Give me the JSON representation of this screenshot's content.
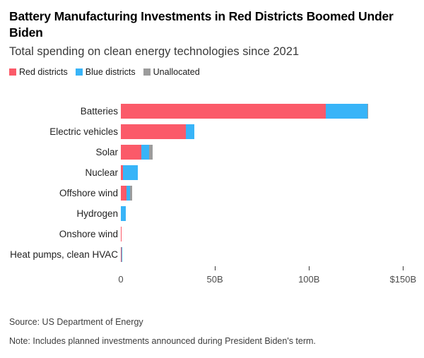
{
  "header": {
    "title": "Battery Manufacturing Investments in Red Districts Boomed Under Biden",
    "subtitle": "Total spending on clean energy technologies since 2021"
  },
  "legend": [
    {
      "label": "Red districts",
      "color": "#fb5a69"
    },
    {
      "label": "Blue districts",
      "color": "#38b4f8"
    },
    {
      "label": "Unallocated",
      "color": "#9c9c9c"
    }
  ],
  "chart_data": {
    "type": "bar",
    "orientation": "horizontal",
    "stacked": true,
    "unit": "billions of US dollars",
    "title": "Battery Manufacturing Investments in Red Districts Boomed Under Biden",
    "subtitle": "Total spending on clean energy technologies since 2021",
    "categories": [
      "Batteries",
      "Electric vehicles",
      "Solar",
      "Nuclear",
      "Offshore wind",
      "Hydrogen",
      "Onshore wind",
      "Heat pumps, clean HVAC"
    ],
    "series": [
      {
        "name": "Red districts",
        "color": "#fb5a69",
        "values": [
          109,
          34.5,
          11,
          1,
          3,
          0,
          0.5,
          0.2
        ]
      },
      {
        "name": "Blue districts",
        "color": "#38b4f8",
        "values": [
          22,
          4.5,
          4,
          8,
          2,
          2.6,
          0,
          0.3
        ]
      },
      {
        "name": "Unallocated",
        "color": "#9c9c9c",
        "values": [
          0.5,
          0,
          2,
          0,
          1,
          0,
          0,
          0
        ]
      }
    ],
    "x_axis": {
      "min": 0,
      "max": 160,
      "tick_values": [
        0,
        50,
        100,
        150
      ],
      "tick_labels": [
        "0",
        "50B",
        "100B",
        "$150B"
      ],
      "ticks_with_marks": [
        50,
        100,
        150
      ]
    },
    "grid": false,
    "legend_position": "top"
  },
  "footer": {
    "source": "Source: US Department of Energy",
    "note": "Note: Includes planned investments announced during President Biden's term."
  }
}
